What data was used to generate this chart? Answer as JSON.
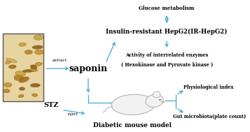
{
  "bg_color": "#ffffff",
  "arrow_color": "#44aacc",
  "text_color": "#000000",
  "extract_label": "extract",
  "saponin_label": "saponin",
  "hepg2_label": "Insulin-resistant HepG2(IR-HepG2)",
  "glucose_label": "Glucose metabolism",
  "enzyme_line1": "Activity of interrelated enzymes",
  "enzyme_line2": "( Hexokinase and Pyruvate kinase )",
  "stz_label": "STZ",
  "inject_label": "inject",
  "mouse_label": "Diabetic mouse model",
  "physio_label": "Physiological index",
  "gut_label": "Gut microbiota(plate count)",
  "herb_facecolor": "#c8a84a",
  "herb_edgecolor": "#555555",
  "mouse_body_color": "#f2f2f2",
  "mouse_edge_color": "#aaaaaa"
}
